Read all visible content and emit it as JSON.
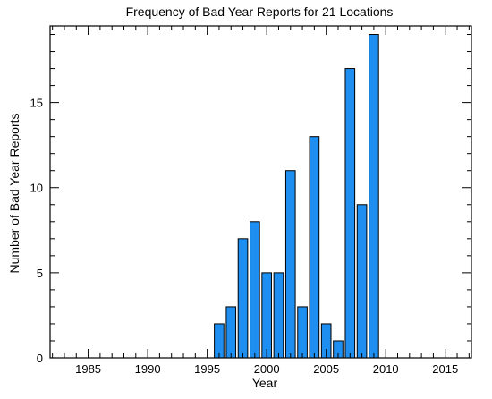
{
  "chart_data": {
    "type": "bar",
    "title": "Frequency of Bad Year Reports for 21 Locations",
    "xlabel": "Year",
    "ylabel": "Number of Bad Year Reports",
    "xlim": [
      1981.8,
      2017.2
    ],
    "ylim": [
      0,
      19.5
    ],
    "xticks": [
      1985,
      1990,
      1995,
      2000,
      2005,
      2010,
      2015
    ],
    "yticks": [
      0,
      5,
      10,
      15
    ],
    "x": [
      1996,
      1997,
      1998,
      1999,
      2000,
      2001,
      2002,
      2003,
      2004,
      2005,
      2006,
      2007,
      2008,
      2009
    ],
    "values": [
      2,
      3,
      7,
      8,
      5,
      5,
      11,
      3,
      13,
      2,
      1,
      17,
      9,
      19
    ],
    "bar_color": "#1e8ff0",
    "bar_edge_color": "#000000",
    "grid": false,
    "legend": "none"
  }
}
